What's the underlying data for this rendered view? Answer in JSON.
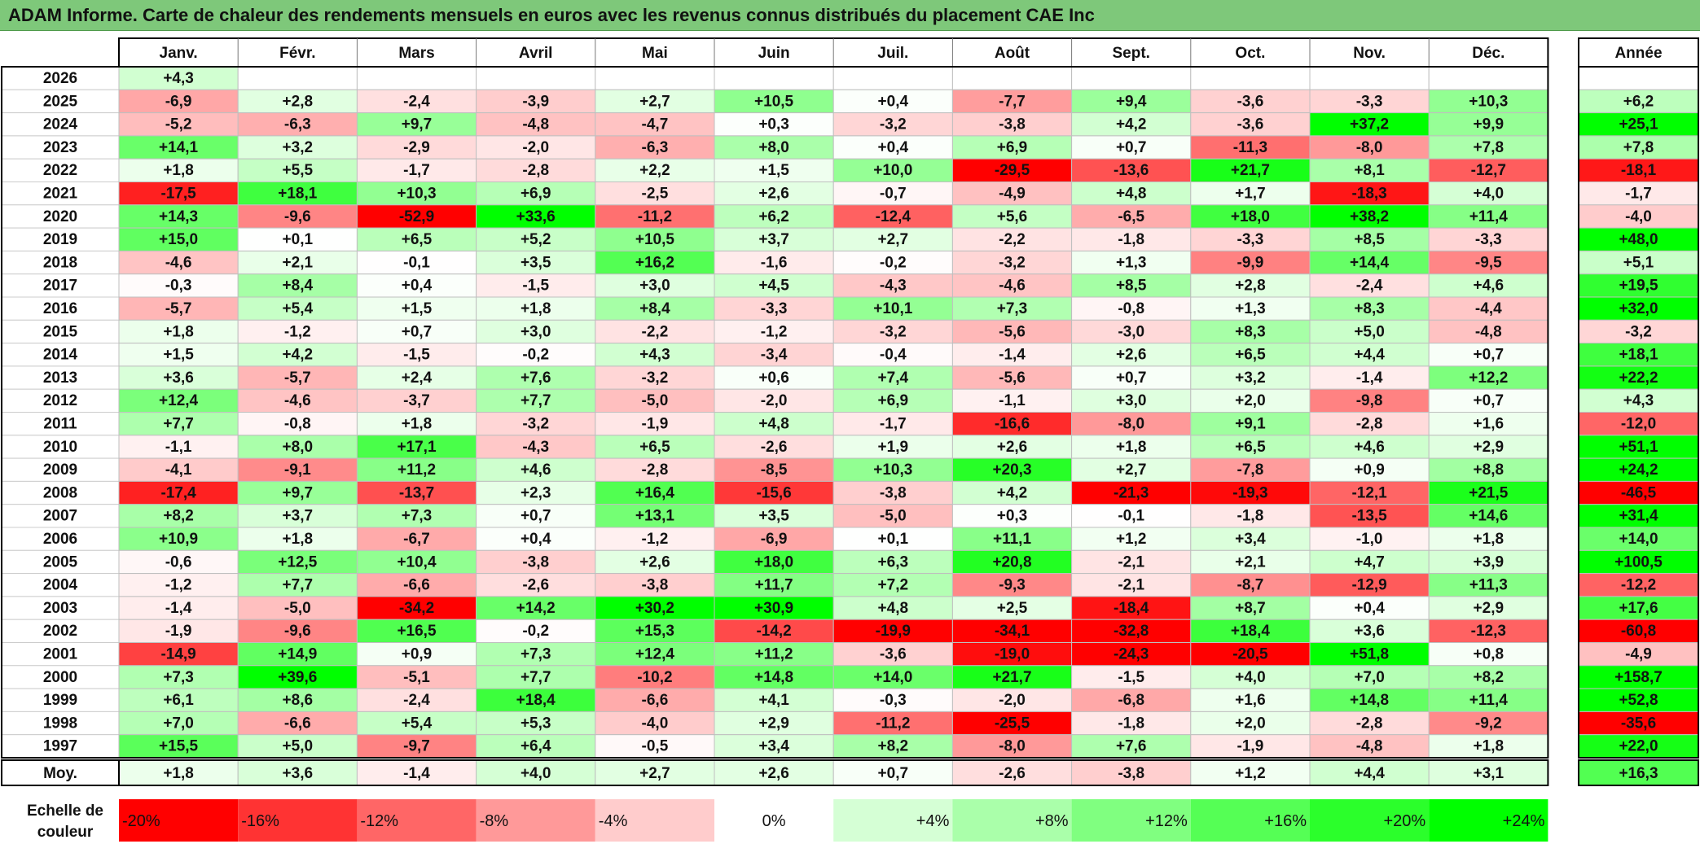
{
  "title": "ADAM Informe. Carte de chaleur des rendements mensuels en euros avec les revenus connus distribués du placement CAE Inc",
  "chart_data": {
    "type": "heatmap",
    "months": [
      "Janv.",
      "Févr.",
      "Mars",
      "Avril",
      "Mai",
      "Juin",
      "Juil.",
      "Août",
      "Sept.",
      "Oct.",
      "Nov.",
      "Déc."
    ],
    "year_header": "Année",
    "avg_label": "Moy.",
    "scale_label_line1": "Echelle de",
    "scale_label_line2": "couleur",
    "rows": [
      {
        "year": "2026",
        "months": [
          "+4,3",
          "",
          "",
          "",
          "",
          "",
          "",
          "",
          "",
          "",
          "",
          ""
        ],
        "annual": ""
      },
      {
        "year": "2025",
        "months": [
          "-6,9",
          "+2,8",
          "-2,4",
          "-3,9",
          "+2,7",
          "+10,5",
          "+0,4",
          "-7,7",
          "+9,4",
          "-3,6",
          "-3,3",
          "+10,3"
        ],
        "annual": "+6,2"
      },
      {
        "year": "2024",
        "months": [
          "-5,2",
          "-6,3",
          "+9,7",
          "-4,8",
          "-4,7",
          "+0,3",
          "-3,2",
          "-3,8",
          "+4,2",
          "-3,6",
          "+37,2",
          "+9,9"
        ],
        "annual": "+25,1"
      },
      {
        "year": "2023",
        "months": [
          "+14,1",
          "+3,2",
          "-2,9",
          "-2,0",
          "-6,3",
          "+8,0",
          "+0,4",
          "+6,9",
          "+0,7",
          "-11,3",
          "-8,0",
          "+7,8"
        ],
        "annual": "+7,8"
      },
      {
        "year": "2022",
        "months": [
          "+1,8",
          "+5,5",
          "-1,7",
          "-2,8",
          "+2,2",
          "+1,5",
          "+10,0",
          "-29,5",
          "-13,6",
          "+21,7",
          "+8,1",
          "-12,7"
        ],
        "annual": "-18,1"
      },
      {
        "year": "2021",
        "months": [
          "-17,5",
          "+18,1",
          "+10,3",
          "+6,9",
          "-2,5",
          "+2,6",
          "-0,7",
          "-4,9",
          "+4,8",
          "+1,7",
          "-18,3",
          "+4,0"
        ],
        "annual": "-1,7"
      },
      {
        "year": "2020",
        "months": [
          "+14,3",
          "-9,6",
          "-52,9",
          "+33,6",
          "-11,2",
          "+6,2",
          "-12,4",
          "+5,6",
          "-6,5",
          "+18,0",
          "+38,2",
          "+11,4"
        ],
        "annual": "-4,0"
      },
      {
        "year": "2019",
        "months": [
          "+15,0",
          "+0,1",
          "+6,5",
          "+5,2",
          "+10,5",
          "+3,7",
          "+2,7",
          "-2,2",
          "-1,8",
          "-3,3",
          "+8,5",
          "-3,3"
        ],
        "annual": "+48,0"
      },
      {
        "year": "2018",
        "months": [
          "-4,6",
          "+2,1",
          "-0,1",
          "+3,5",
          "+16,2",
          "-1,6",
          "-0,2",
          "-3,2",
          "+1,3",
          "-9,9",
          "+14,4",
          "-9,5"
        ],
        "annual": "+5,1"
      },
      {
        "year": "2017",
        "months": [
          "-0,3",
          "+8,4",
          "+0,4",
          "-1,5",
          "+3,0",
          "+4,5",
          "-4,3",
          "-4,6",
          "+8,5",
          "+2,8",
          "-2,4",
          "+4,6"
        ],
        "annual": "+19,5"
      },
      {
        "year": "2016",
        "months": [
          "-5,7",
          "+5,4",
          "+1,5",
          "+1,8",
          "+8,4",
          "-3,3",
          "+10,1",
          "+7,3",
          "-0,8",
          "+1,3",
          "+8,3",
          "-4,4"
        ],
        "annual": "+32,0"
      },
      {
        "year": "2015",
        "months": [
          "+1,8",
          "-1,2",
          "+0,7",
          "+3,0",
          "-2,2",
          "-1,2",
          "-3,2",
          "-5,6",
          "-3,0",
          "+8,3",
          "+5,0",
          "-4,8"
        ],
        "annual": "-3,2"
      },
      {
        "year": "2014",
        "months": [
          "+1,5",
          "+4,2",
          "-1,5",
          "-0,2",
          "+4,3",
          "-3,4",
          "-0,4",
          "-1,4",
          "+2,6",
          "+6,5",
          "+4,4",
          "+0,7"
        ],
        "annual": "+18,1"
      },
      {
        "year": "2013",
        "months": [
          "+3,6",
          "-5,7",
          "+2,4",
          "+7,6",
          "-3,2",
          "+0,6",
          "+7,4",
          "-5,6",
          "+0,7",
          "+3,2",
          "-1,4",
          "+12,2"
        ],
        "annual": "+22,2"
      },
      {
        "year": "2012",
        "months": [
          "+12,4",
          "-4,6",
          "-3,7",
          "+7,7",
          "-5,0",
          "-2,0",
          "+6,9",
          "-1,1",
          "+3,0",
          "+2,0",
          "-9,8",
          "+0,7"
        ],
        "annual": "+4,3"
      },
      {
        "year": "2011",
        "months": [
          "+7,7",
          "-0,8",
          "+1,8",
          "-3,2",
          "-1,9",
          "+4,8",
          "-1,7",
          "-16,6",
          "-8,0",
          "+9,1",
          "-2,8",
          "+1,6"
        ],
        "annual": "-12,0"
      },
      {
        "year": "2010",
        "months": [
          "-1,1",
          "+8,0",
          "+17,1",
          "-4,3",
          "+6,5",
          "-2,6",
          "+1,9",
          "+2,6",
          "+1,8",
          "+6,5",
          "+4,6",
          "+2,9"
        ],
        "annual": "+51,1"
      },
      {
        "year": "2009",
        "months": [
          "-4,1",
          "-9,1",
          "+11,2",
          "+4,6",
          "-2,8",
          "-8,5",
          "+10,3",
          "+20,3",
          "+2,7",
          "-7,8",
          "+0,9",
          "+8,8"
        ],
        "annual": "+24,2"
      },
      {
        "year": "2008",
        "months": [
          "-17,4",
          "+9,7",
          "-13,7",
          "+2,3",
          "+16,4",
          "-15,6",
          "-3,8",
          "+4,2",
          "-21,3",
          "-19,3",
          "-12,1",
          "+21,5"
        ],
        "annual": "-46,5"
      },
      {
        "year": "2007",
        "months": [
          "+8,2",
          "+3,7",
          "+7,3",
          "+0,7",
          "+13,1",
          "+3,5",
          "-5,0",
          "+0,3",
          "-0,1",
          "-1,8",
          "-13,5",
          "+14,6"
        ],
        "annual": "+31,4"
      },
      {
        "year": "2006",
        "months": [
          "+10,9",
          "+1,8",
          "-6,7",
          "+0,4",
          "-1,2",
          "-6,9",
          "+0,1",
          "+11,1",
          "+1,2",
          "+3,4",
          "-1,0",
          "+1,8"
        ],
        "annual": "+14,0"
      },
      {
        "year": "2005",
        "months": [
          "-0,6",
          "+12,5",
          "+10,4",
          "-3,8",
          "+2,6",
          "+18,0",
          "+6,3",
          "+20,8",
          "-2,1",
          "+2,1",
          "+4,7",
          "+3,9"
        ],
        "annual": "+100,5"
      },
      {
        "year": "2004",
        "months": [
          "-1,2",
          "+7,7",
          "-6,6",
          "-2,6",
          "-3,8",
          "+11,7",
          "+7,2",
          "-9,3",
          "-2,1",
          "-8,7",
          "-12,9",
          "+11,3"
        ],
        "annual": "-12,2"
      },
      {
        "year": "2003",
        "months": [
          "-1,4",
          "-5,0",
          "-34,2",
          "+14,2",
          "+30,2",
          "+30,9",
          "+4,8",
          "+2,5",
          "-18,4",
          "+8,7",
          "+0,4",
          "+2,9"
        ],
        "annual": "+17,6"
      },
      {
        "year": "2002",
        "months": [
          "-1,9",
          "-9,6",
          "+16,5",
          "-0,2",
          "+15,3",
          "-14,2",
          "-19,9",
          "-34,1",
          "-32,8",
          "+18,4",
          "+3,6",
          "-12,3"
        ],
        "annual": "-60,8"
      },
      {
        "year": "2001",
        "months": [
          "-14,9",
          "+14,9",
          "+0,9",
          "+7,3",
          "+12,4",
          "+11,2",
          "-3,6",
          "-19,0",
          "-24,3",
          "-20,5",
          "+51,8",
          "+0,8"
        ],
        "annual": "-4,9"
      },
      {
        "year": "2000",
        "months": [
          "+7,3",
          "+39,6",
          "-5,1",
          "+7,7",
          "-10,2",
          "+14,8",
          "+14,0",
          "+21,7",
          "-1,5",
          "+4,0",
          "+7,0",
          "+8,2"
        ],
        "annual": "+158,7"
      },
      {
        "year": "1999",
        "months": [
          "+6,1",
          "+8,6",
          "-2,4",
          "+18,4",
          "-6,6",
          "+4,1",
          "-0,3",
          "-2,0",
          "-6,8",
          "+1,6",
          "+14,8",
          "+11,4"
        ],
        "annual": "+52,8"
      },
      {
        "year": "1998",
        "months": [
          "+7,0",
          "-6,6",
          "+5,4",
          "+5,3",
          "-4,0",
          "+2,9",
          "-11,2",
          "-25,5",
          "-1,8",
          "+2,0",
          "-2,8",
          "-9,2"
        ],
        "annual": "-35,6"
      },
      {
        "year": "1997",
        "months": [
          "+15,5",
          "+5,0",
          "-9,7",
          "+6,4",
          "-0,5",
          "+3,4",
          "+8,2",
          "-8,0",
          "+7,6",
          "-1,9",
          "-4,8",
          "+1,8"
        ],
        "annual": "+22,0"
      }
    ],
    "average": {
      "months": [
        "+1,8",
        "+3,6",
        "-1,4",
        "+4,0",
        "+2,7",
        "+2,6",
        "+0,7",
        "-2,6",
        "-3,8",
        "+1,2",
        "+4,4",
        "+3,1"
      ],
      "annual": "+16,3"
    },
    "color_scale": [
      {
        "label": "-20%",
        "value": -20,
        "color": "#ff0000"
      },
      {
        "label": "-16%",
        "value": -16,
        "color": "#ff3333"
      },
      {
        "label": "-12%",
        "value": -12,
        "color": "#ff6666"
      },
      {
        "label": "-8%",
        "value": -8,
        "color": "#ff9999"
      },
      {
        "label": "-4%",
        "value": -4,
        "color": "#ffcccc"
      },
      {
        "label": "0%",
        "value": 0,
        "color": "#ffffff"
      },
      {
        "label": "+4%",
        "value": 4,
        "color": "#d5ffd5"
      },
      {
        "label": "+8%",
        "value": 8,
        "color": "#aaffaa"
      },
      {
        "label": "+12%",
        "value": 12,
        "color": "#80ff80"
      },
      {
        "label": "+16%",
        "value": 16,
        "color": "#55ff55"
      },
      {
        "label": "+20%",
        "value": 20,
        "color": "#2bff2b"
      },
      {
        "label": "+24%",
        "value": 24,
        "color": "#00ff00"
      }
    ]
  }
}
